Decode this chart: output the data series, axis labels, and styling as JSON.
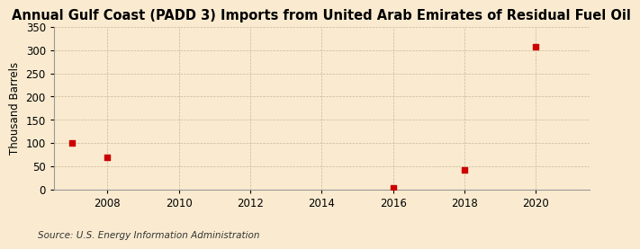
{
  "title": "Annual Gulf Coast (PADD 3) Imports from United Arab Emirates of Residual Fuel Oil",
  "ylabel": "Thousand Barrels",
  "source": "Source: U.S. Energy Information Administration",
  "background_color": "#faebd0",
  "plot_bg_color": "#faebd0",
  "data_years": [
    2007,
    2008,
    2016,
    2018,
    2020
  ],
  "data_values": [
    100,
    70,
    3,
    43,
    308
  ],
  "marker_color": "#cc0000",
  "marker_size": 18,
  "xlim": [
    2006.5,
    2021.5
  ],
  "ylim": [
    0,
    350
  ],
  "xticks": [
    2008,
    2010,
    2012,
    2014,
    2016,
    2018,
    2020
  ],
  "yticks": [
    0,
    50,
    100,
    150,
    200,
    250,
    300,
    350
  ],
  "grid_color": "#c8b89a",
  "title_fontsize": 10.5,
  "axis_fontsize": 8.5,
  "tick_fontsize": 8.5,
  "source_fontsize": 7.5
}
